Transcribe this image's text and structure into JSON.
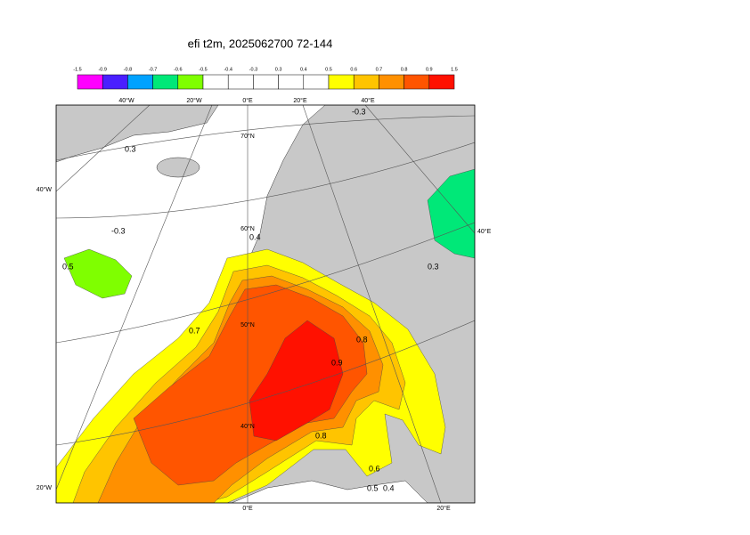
{
  "title": "efi t2m, 2025062700 72-144",
  "colorbar": {
    "levels": [
      -1.5,
      -0.9,
      -0.8,
      -0.7,
      -0.6,
      -0.5,
      -0.4,
      -0.3,
      0.3,
      0.4,
      0.5,
      0.6,
      0.7,
      0.8,
      0.9,
      1.5
    ],
    "colors": [
      "#ff00ff",
      "#4a1fff",
      "#00a2ff",
      "#00e878",
      "#7fff00",
      "#ffffff",
      "#ffffff",
      "#ffffff",
      "#ffffff",
      "#ffffff",
      "#ffff00",
      "#ffc400",
      "#ff9000",
      "#ff5500",
      "#ff1100"
    ]
  },
  "map": {
    "graticule_labels": [
      "40°W",
      "20°W",
      "0°E",
      "20°E",
      "40°E",
      "70°N",
      "60°N",
      "50°N",
      "40°N",
      "40°W",
      "20°W",
      "40°E",
      "0°E",
      "20°E"
    ],
    "contour_labels": [
      "0.3",
      "-0.3",
      "0.5",
      "-0.3",
      "0.4",
      "0.7",
      "0.8",
      "0.9",
      "0.8",
      "0.6",
      "0.5",
      "0.4",
      "0.3"
    ]
  }
}
